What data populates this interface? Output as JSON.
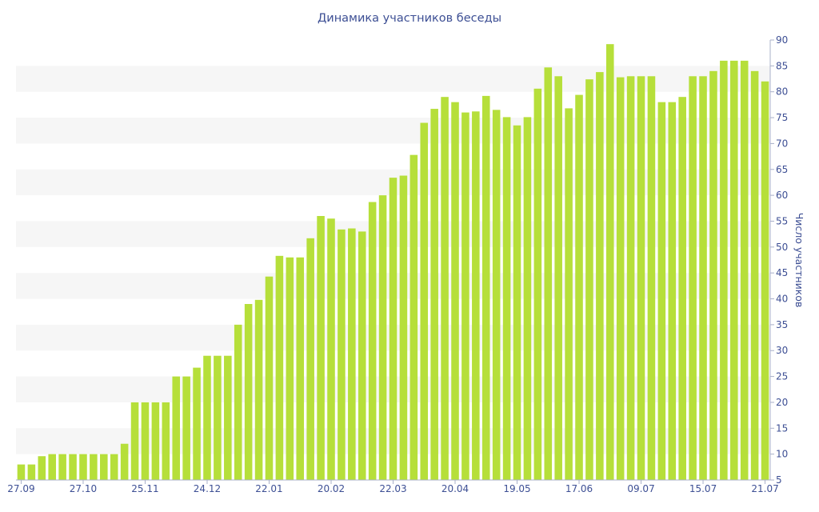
{
  "chart_data": {
    "type": "bar",
    "title": "Динамика участников беседы",
    "xlabel": "",
    "ylabel": "Число участников",
    "ylim": [
      5,
      90
    ],
    "yticks": [
      5,
      10,
      15,
      20,
      25,
      30,
      35,
      40,
      45,
      50,
      55,
      60,
      65,
      70,
      75,
      80,
      85,
      90
    ],
    "y_axis_side": "right",
    "grid": true,
    "legend": "none",
    "categories": [
      "27.09",
      "",
      "",
      "",
      "",
      "",
      "27.10",
      "",
      "",
      "",
      "",
      "",
      "25.11",
      "",
      "",
      "",
      "",
      "",
      "24.12",
      "",
      "",
      "",
      "",
      "",
      "22.01",
      "",
      "",
      "",
      "",
      "",
      "20.02",
      "",
      "",
      "",
      "",
      "",
      "22.03",
      "",
      "",
      "",
      "",
      "",
      "20.04",
      "",
      "",
      "",
      "",
      "",
      "19.05",
      "",
      "",
      "",
      "",
      "",
      "17.06",
      "",
      "",
      "",
      "",
      "",
      "09.07",
      "",
      "",
      "",
      "",
      "",
      "15.07",
      "",
      "",
      "",
      "",
      "",
      "21.07"
    ],
    "values": [
      8,
      8,
      9.6,
      10,
      10,
      10,
      10,
      10,
      10,
      10,
      12,
      20,
      20,
      20,
      20,
      25,
      25,
      26.7,
      29,
      29,
      29,
      35,
      39,
      39.8,
      44.3,
      48.3,
      48,
      48,
      51.7,
      56,
      55.5,
      53.4,
      53.6,
      53,
      58.7,
      60,
      63.4,
      63.8,
      67.8,
      74,
      76.7,
      79,
      78,
      76,
      76.2,
      79.2,
      76.5,
      75.1,
      73.5,
      75.1,
      80.6,
      84.7,
      83,
      76.8,
      79.4,
      82.4,
      83.8,
      89.2,
      82.8,
      83,
      83,
      83,
      78,
      78,
      79,
      83,
      83,
      84,
      86,
      86,
      86,
      84,
      82
    ],
    "colors": {
      "bar": "#b6df3a",
      "text": "#3d4f94",
      "band": "#f6f6f6",
      "axis": "#a9b0c9"
    }
  }
}
